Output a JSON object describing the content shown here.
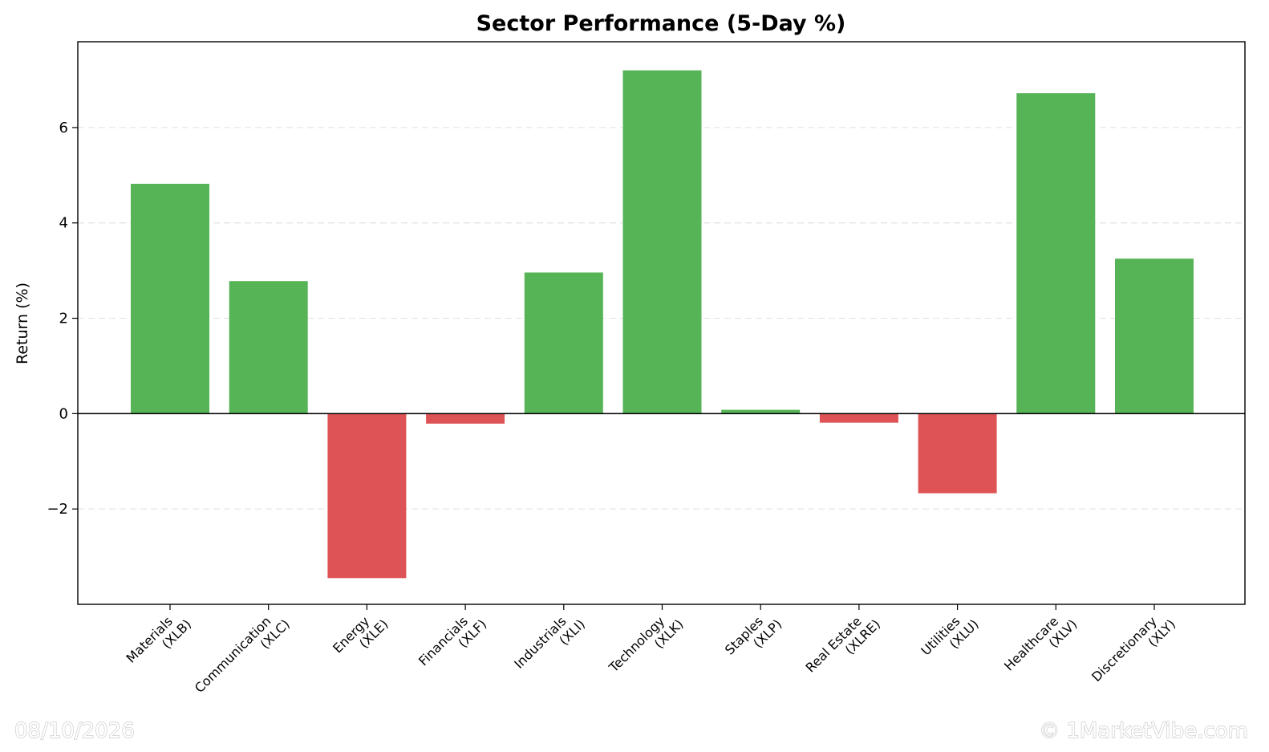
{
  "chart_data": {
    "type": "bar",
    "title": "Sector Performance (5-Day %)",
    "xlabel": "",
    "ylabel": "Return (%)",
    "ylim": [
      -4,
      7.8
    ],
    "yticks": [
      -2,
      0,
      2,
      4,
      6
    ],
    "ytick_labels": [
      "−2",
      "0",
      "2",
      "4",
      "6"
    ],
    "grid": true,
    "categories": [
      {
        "name": "Materials",
        "ticker": "(XLB)"
      },
      {
        "name": "Communication",
        "ticker": "(XLC)"
      },
      {
        "name": "Energy",
        "ticker": "(XLE)"
      },
      {
        "name": "Financials",
        "ticker": "(XLF)"
      },
      {
        "name": "Industrials",
        "ticker": "(XLI)"
      },
      {
        "name": "Technology",
        "ticker": "(XLK)"
      },
      {
        "name": "Staples",
        "ticker": "(XLP)"
      },
      {
        "name": "Real Estate",
        "ticker": "(XLRE)"
      },
      {
        "name": "Utilities",
        "ticker": "(XLU)"
      },
      {
        "name": "Healthcare",
        "ticker": "(XLV)"
      },
      {
        "name": "Discretionary",
        "ticker": "(XLY)"
      }
    ],
    "values": [
      4.82,
      2.78,
      -3.45,
      -0.21,
      2.96,
      7.2,
      0.08,
      -0.19,
      -1.67,
      6.72,
      3.25
    ],
    "colors": {
      "positive": "#56b356",
      "negative": "#de5355"
    }
  },
  "footer": {
    "date": "08/10/2026",
    "copyright": "© 1MarketVibe.com"
  }
}
